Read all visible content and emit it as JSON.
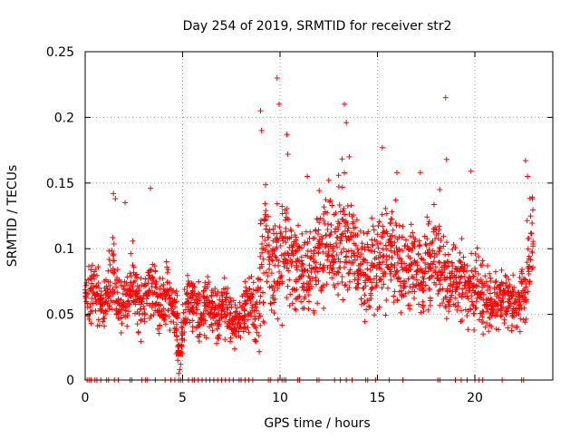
{
  "chart_data": {
    "type": "scatter",
    "title": "Day 254 of 2019, SRMTID for receiver str2",
    "xlabel": "GPS time / hours",
    "ylabel": "SRMTID / TECUs",
    "xlim": [
      0,
      24
    ],
    "ylim": [
      0,
      0.25
    ],
    "x_ticks": [
      0,
      5,
      10,
      15,
      20
    ],
    "x_tick_labels": [
      "0",
      "5",
      "10",
      "15",
      "20"
    ],
    "y_ticks": [
      0,
      0.05,
      0.1,
      0.15,
      0.2,
      0.25
    ],
    "y_tick_labels": [
      "0",
      "0.05",
      "0.1",
      "0.15",
      "0.2",
      "0.25"
    ],
    "grid": true,
    "marker": "+",
    "color": "#ff0000",
    "series": [
      {
        "name": "str2",
        "x": [
          0.0,
          0.17,
          0.33,
          0.5,
          0.67,
          0.83,
          1.0,
          1.17,
          1.33,
          1.5,
          1.67,
          1.83,
          2.0,
          2.17,
          2.33,
          2.5,
          2.67,
          2.83,
          3.0,
          3.17,
          3.33,
          3.5,
          3.67,
          3.83,
          4.0,
          4.17,
          4.33,
          4.5,
          4.67,
          4.75,
          4.83,
          4.92,
          5.0,
          5.17,
          5.33,
          5.5,
          5.67,
          5.83,
          6.0,
          6.17,
          6.33,
          6.5,
          6.67,
          6.83,
          7.0,
          7.17,
          7.33,
          7.5,
          7.67,
          7.83,
          8.0,
          8.17,
          8.33,
          8.5,
          8.67,
          8.83,
          9.0,
          9.17,
          9.33,
          9.5,
          9.67,
          9.83,
          10.0,
          10.17,
          10.33,
          10.5,
          10.67,
          10.83,
          11.0,
          11.17,
          11.33,
          11.5,
          11.67,
          11.83,
          12.0,
          12.17,
          12.33,
          12.5,
          12.67,
          12.83,
          13.0,
          13.17,
          13.33,
          13.5,
          13.67,
          13.83,
          14.0,
          14.17,
          14.33,
          14.5,
          14.67,
          14.83,
          15.0,
          15.17,
          15.33,
          15.5,
          15.67,
          15.83,
          16.0,
          16.17,
          16.33,
          16.5,
          16.67,
          16.83,
          17.0,
          17.17,
          17.33,
          17.5,
          17.67,
          17.83,
          18.0,
          18.17,
          18.33,
          18.5,
          18.67,
          18.83,
          19.0,
          19.17,
          19.33,
          19.5,
          19.67,
          19.83,
          20.0,
          20.17,
          20.33,
          20.5,
          20.67,
          20.83,
          21.0,
          21.17,
          21.33,
          21.5,
          21.67,
          21.83,
          22.0,
          22.17,
          22.33,
          22.5,
          22.67,
          22.83
        ],
        "y_center": [
          0.062,
          0.065,
          0.07,
          0.068,
          0.06,
          0.058,
          0.065,
          0.075,
          0.08,
          0.07,
          0.063,
          0.06,
          0.062,
          0.068,
          0.072,
          0.066,
          0.058,
          0.055,
          0.06,
          0.065,
          0.07,
          0.066,
          0.06,
          0.058,
          0.062,
          0.064,
          0.06,
          0.055,
          0.045,
          0.02,
          0.01,
          0.03,
          0.05,
          0.058,
          0.062,
          0.06,
          0.055,
          0.05,
          0.055,
          0.058,
          0.055,
          0.05,
          0.048,
          0.052,
          0.058,
          0.055,
          0.05,
          0.045,
          0.04,
          0.045,
          0.05,
          0.055,
          0.06,
          0.055,
          0.05,
          0.06,
          0.085,
          0.1,
          0.095,
          0.088,
          0.085,
          0.09,
          0.1,
          0.11,
          0.1,
          0.09,
          0.085,
          0.088,
          0.09,
          0.085,
          0.08,
          0.085,
          0.09,
          0.095,
          0.1,
          0.105,
          0.1,
          0.095,
          0.098,
          0.1,
          0.105,
          0.11,
          0.108,
          0.1,
          0.095,
          0.09,
          0.085,
          0.08,
          0.082,
          0.085,
          0.088,
          0.09,
          0.092,
          0.095,
          0.098,
          0.1,
          0.098,
          0.095,
          0.09,
          0.088,
          0.085,
          0.09,
          0.095,
          0.09,
          0.085,
          0.08,
          0.082,
          0.085,
          0.09,
          0.095,
          0.09,
          0.085,
          0.08,
          0.075,
          0.072,
          0.075,
          0.078,
          0.08,
          0.075,
          0.07,
          0.068,
          0.072,
          0.075,
          0.07,
          0.065,
          0.062,
          0.06,
          0.058,
          0.06,
          0.062,
          0.065,
          0.063,
          0.06,
          0.058,
          0.055,
          0.06,
          0.065,
          0.07,
          0.09,
          0.11
        ],
        "y_spread": [
          0.025,
          0.025,
          0.025,
          0.025,
          0.025,
          0.025,
          0.03,
          0.035,
          0.04,
          0.03,
          0.025,
          0.025,
          0.025,
          0.03,
          0.035,
          0.03,
          0.025,
          0.025,
          0.025,
          0.03,
          0.035,
          0.03,
          0.025,
          0.025,
          0.025,
          0.03,
          0.025,
          0.025,
          0.025,
          0.015,
          0.01,
          0.02,
          0.025,
          0.025,
          0.03,
          0.025,
          0.025,
          0.025,
          0.025,
          0.025,
          0.025,
          0.025,
          0.025,
          0.025,
          0.025,
          0.025,
          0.025,
          0.02,
          0.02,
          0.02,
          0.025,
          0.025,
          0.03,
          0.03,
          0.03,
          0.04,
          0.05,
          0.06,
          0.055,
          0.045,
          0.04,
          0.05,
          0.055,
          0.05,
          0.045,
          0.045,
          0.04,
          0.04,
          0.04,
          0.04,
          0.04,
          0.04,
          0.045,
          0.05,
          0.05,
          0.05,
          0.045,
          0.045,
          0.045,
          0.05,
          0.055,
          0.06,
          0.055,
          0.045,
          0.04,
          0.04,
          0.035,
          0.035,
          0.035,
          0.04,
          0.04,
          0.045,
          0.045,
          0.045,
          0.045,
          0.045,
          0.045,
          0.04,
          0.04,
          0.04,
          0.04,
          0.04,
          0.045,
          0.04,
          0.035,
          0.035,
          0.035,
          0.04,
          0.045,
          0.05,
          0.045,
          0.04,
          0.035,
          0.035,
          0.03,
          0.035,
          0.035,
          0.04,
          0.035,
          0.03,
          0.03,
          0.035,
          0.035,
          0.03,
          0.03,
          0.025,
          0.025,
          0.025,
          0.025,
          0.03,
          0.03,
          0.03,
          0.03,
          0.025,
          0.025,
          0.025,
          0.03,
          0.035,
          0.04,
          0.045
        ],
        "outliers": [
          {
            "x": 9.85,
            "y": 0.23
          },
          {
            "x": 9.95,
            "y": 0.21
          },
          {
            "x": 9.0,
            "y": 0.205
          },
          {
            "x": 9.05,
            "y": 0.19
          },
          {
            "x": 13.3,
            "y": 0.21
          },
          {
            "x": 13.4,
            "y": 0.196
          },
          {
            "x": 13.55,
            "y": 0.17
          },
          {
            "x": 18.5,
            "y": 0.215
          },
          {
            "x": 18.55,
            "y": 0.168
          },
          {
            "x": 10.35,
            "y": 0.187
          },
          {
            "x": 10.4,
            "y": 0.172
          },
          {
            "x": 15.25,
            "y": 0.177
          },
          {
            "x": 3.35,
            "y": 0.146
          },
          {
            "x": 1.45,
            "y": 0.142
          },
          {
            "x": 1.55,
            "y": 0.138
          },
          {
            "x": 2.05,
            "y": 0.135
          },
          {
            "x": 22.6,
            "y": 0.167
          },
          {
            "x": 22.7,
            "y": 0.155
          },
          {
            "x": 19.8,
            "y": 0.159
          },
          {
            "x": 17.2,
            "y": 0.158
          },
          {
            "x": 12.5,
            "y": 0.152
          },
          {
            "x": 11.4,
            "y": 0.155
          },
          {
            "x": 18.2,
            "y": 0.145
          },
          {
            "x": 16.0,
            "y": 0.158
          },
          {
            "x": 4.8,
            "y": 0.005
          },
          {
            "x": 4.85,
            "y": 0.008
          },
          {
            "x": 4.9,
            "y": 0.012
          },
          {
            "x": 4.75,
            "y": 0.015
          }
        ]
      }
    ],
    "zero_points_x": [
      0.1,
      0.2,
      0.3,
      0.5,
      0.6,
      0.8,
      1.1,
      1.2,
      1.5,
      1.7,
      2.3,
      2.4,
      2.9,
      3.1,
      3.2,
      3.6,
      4.1,
      4.4,
      4.6,
      4.8,
      4.9,
      5.0,
      5.3,
      5.5,
      5.6,
      5.8,
      6.0,
      6.2,
      6.4,
      6.6,
      6.8,
      7.0,
      7.2,
      7.4,
      7.6,
      7.9,
      8.0,
      8.2,
      8.4,
      8.6,
      9.4,
      9.5,
      9.9,
      10.1,
      10.2,
      10.3,
      10.9,
      11.0,
      11.9,
      12.0,
      12.8,
      13.1,
      13.4,
      13.7,
      14.4,
      14.5,
      14.9,
      15.6,
      16.3,
      18.1,
      18.2,
      19.0,
      19.3,
      19.6,
      20.0,
      20.2,
      20.4,
      21.4,
      22.4,
      22.5
    ]
  }
}
